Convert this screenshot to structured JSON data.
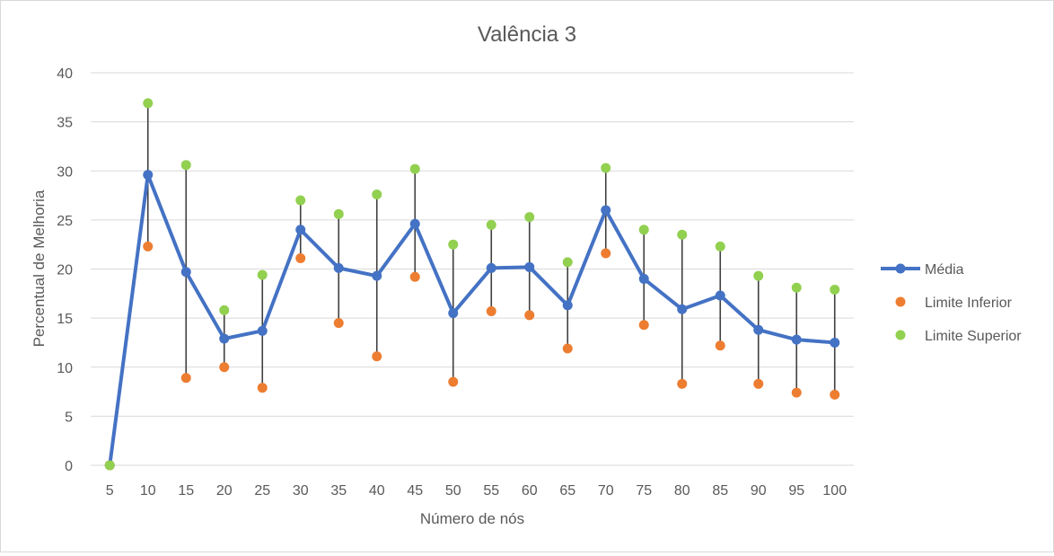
{
  "chart_data": {
    "type": "line",
    "title": "Valência 3",
    "xlabel": "Número de nós",
    "ylabel": "Percentual de Melhoria",
    "ylim": [
      0,
      40
    ],
    "yticks": [
      0,
      5,
      10,
      15,
      20,
      25,
      30,
      35,
      40
    ],
    "grid": true,
    "legend_position": "right",
    "categories": [
      "5",
      "10",
      "15",
      "20",
      "25",
      "30",
      "35",
      "40",
      "45",
      "50",
      "55",
      "60",
      "65",
      "70",
      "75",
      "80",
      "85",
      "90",
      "95",
      "100"
    ],
    "series": [
      {
        "name": "Média",
        "kind": "line-markers",
        "color": "#4472c4",
        "values": [
          0,
          29.6,
          19.7,
          12.9,
          13.7,
          24.0,
          20.1,
          19.3,
          24.6,
          15.5,
          20.1,
          20.2,
          16.3,
          26.0,
          19.0,
          15.9,
          17.3,
          13.8,
          12.8,
          12.5
        ]
      },
      {
        "name": "Limite Inferior",
        "kind": "markers",
        "color": "#ed7d31",
        "values": [
          0,
          22.3,
          8.9,
          10.0,
          7.9,
          21.1,
          14.5,
          11.1,
          19.2,
          8.5,
          15.7,
          15.3,
          11.9,
          21.6,
          14.3,
          8.3,
          12.2,
          8.3,
          7.4,
          7.2
        ]
      },
      {
        "name": "Limite Superior",
        "kind": "markers",
        "color": "#92d050",
        "values": [
          0,
          36.9,
          30.6,
          15.8,
          19.4,
          27.0,
          25.6,
          27.6,
          30.2,
          22.5,
          24.5,
          25.3,
          20.7,
          30.3,
          24.0,
          23.5,
          22.3,
          19.3,
          18.1,
          17.9
        ]
      }
    ]
  }
}
